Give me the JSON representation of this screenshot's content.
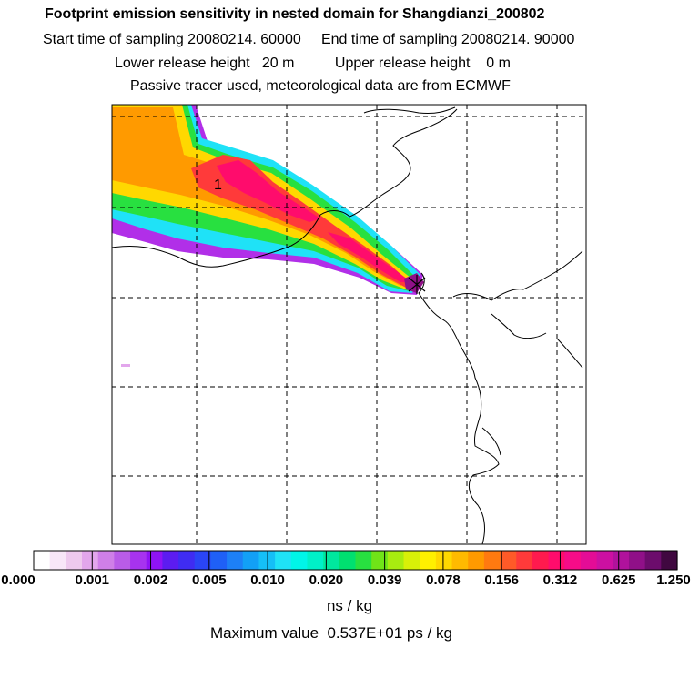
{
  "header": {
    "title": "Footprint emission sensitivity in nested domain for Shangdianzi_200802",
    "line2": "Start time of sampling 20080214. 60000     End time of sampling 20080214. 90000",
    "line3": "Lower release height   20 m          Upper release height    0 m",
    "line4": "Passive tracer used, meteorological data are from ECMWF"
  },
  "map": {
    "contour_label": "1",
    "receptor_marker": "receptor-star"
  },
  "colorbar": {
    "ticks": [
      "0.000",
      "0.001",
      "0.002",
      "0.005",
      "0.010",
      "0.020",
      "0.039",
      "0.078",
      "0.156",
      "0.312",
      "0.625",
      "1.250"
    ],
    "colors": [
      "#ffffff",
      "#f8e6f8",
      "#eec9ee",
      "#e2a6ec",
      "#cf7fe8",
      "#b95ce8",
      "#a733ef",
      "#8f13f5",
      "#5c1cf0",
      "#3f2cf3",
      "#2a45f6",
      "#1f60f6",
      "#1d80f6",
      "#12a0f6",
      "#15bff7",
      "#1fe2f7",
      "#00f5e8",
      "#00f0c8",
      "#00e89e",
      "#00e070",
      "#28e040",
      "#70e418",
      "#a8ec10",
      "#d8f008",
      "#fff000",
      "#ffd800",
      "#ffba00",
      "#ff9a00",
      "#ff7a10",
      "#ff5a28",
      "#ff3a3a",
      "#ff1a4e",
      "#ff0c6c",
      "#f60c88",
      "#e40c96",
      "#cc10a2",
      "#b0129c",
      "#901088",
      "#6c0c6c",
      "#400840"
    ],
    "units": "ns / kg",
    "max_value": "Maximum value  0.537E+01 ps / kg"
  }
}
